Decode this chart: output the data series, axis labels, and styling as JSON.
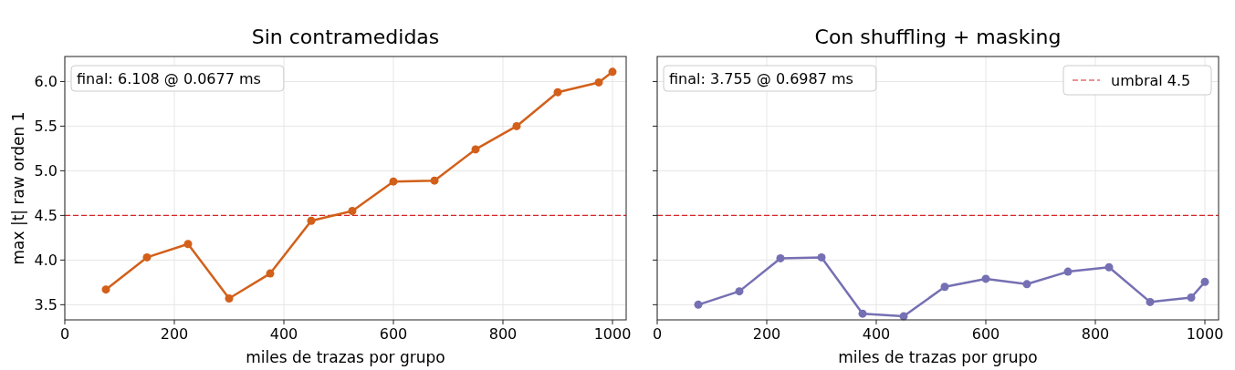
{
  "chart_data": [
    {
      "type": "line",
      "title": "Sin contramedidas",
      "xlabel": "miles de trazas por grupo",
      "ylabel": "max |t| raw orden 1",
      "x": [
        75,
        150,
        225,
        300,
        375,
        450,
        525,
        600,
        675,
        750,
        825,
        900,
        975,
        1000
      ],
      "series": [
        {
          "color": "#d2601a",
          "values": [
            3.67,
            4.03,
            4.18,
            3.57,
            3.85,
            4.44,
            4.55,
            4.88,
            4.89,
            5.24,
            5.5,
            5.88,
            5.99,
            6.108
          ]
        }
      ],
      "xlim": [
        0,
        1025
      ],
      "xticks": [
        0,
        200,
        400,
        600,
        800,
        1000
      ],
      "ylim": [
        3.33,
        6.28
      ],
      "yticks": [
        {
          "value": 3.5,
          "label": "3.5"
        },
        {
          "value": 4,
          "label": "4.0"
        },
        {
          "value": 4.5,
          "label": "4.5"
        },
        {
          "value": 5,
          "label": "5.0"
        },
        {
          "value": 5.5,
          "label": "5.5"
        },
        {
          "value": 6,
          "label": "6.0"
        }
      ],
      "ref_lines": [
        {
          "axis": "y",
          "value": 4.5,
          "color": "#d62728",
          "line_style": "dashed"
        }
      ],
      "annotations": [
        "final: 6.108 @ 0.0677 ms"
      ],
      "grid": true,
      "marker": "circle",
      "line_style": "solid",
      "legend": false
    },
    {
      "type": "line",
      "title": "Con shuffling + masking",
      "xlabel": "miles de trazas por grupo",
      "x": [
        75,
        150,
        225,
        300,
        375,
        450,
        525,
        600,
        675,
        750,
        825,
        900,
        975,
        1000
      ],
      "series": [
        {
          "color": "#7570b3",
          "values": [
            3.5,
            3.65,
            4.02,
            4.03,
            3.4,
            3.37,
            3.7,
            3.79,
            3.73,
            3.87,
            3.92,
            3.53,
            3.58,
            3.755
          ]
        }
      ],
      "xlim": [
        0,
        1025
      ],
      "xticks": [
        0,
        200,
        400,
        600,
        800,
        1000
      ],
      "ylim": [
        3.33,
        6.28
      ],
      "yticks": [
        {
          "value": 3.5,
          "label": null
        },
        {
          "value": 4,
          "label": null
        },
        {
          "value": 4.5,
          "label": null
        },
        {
          "value": 5,
          "label": null
        },
        {
          "value": 5.5,
          "label": null
        },
        {
          "value": 6,
          "label": null
        }
      ],
      "tick_labels": "x",
      "ref_lines": [
        {
          "axis": "y",
          "value": 4.5,
          "label": "umbral 4.5",
          "color": "#d62728",
          "line_style": "dashed"
        }
      ],
      "annotations": [
        "final: 3.755 @ 0.6987 ms"
      ],
      "grid": true,
      "marker": "circle",
      "line_style": "solid",
      "legend": "top right"
    }
  ]
}
